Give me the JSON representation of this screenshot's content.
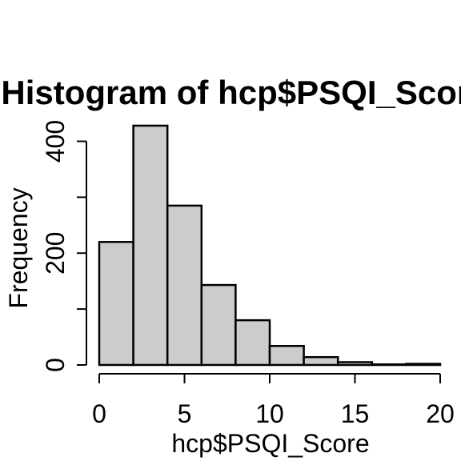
{
  "chart_data": {
    "type": "bar",
    "title": "Histogram of hcp$PSQI_Score",
    "xlabel": "hcp$PSQI_Score",
    "ylabel": "Frequency",
    "bins": [
      {
        "start": 0,
        "end": 2,
        "value": 220
      },
      {
        "start": 2,
        "end": 4,
        "value": 428
      },
      {
        "start": 4,
        "end": 6,
        "value": 285
      },
      {
        "start": 6,
        "end": 8,
        "value": 143
      },
      {
        "start": 8,
        "end": 10,
        "value": 80
      },
      {
        "start": 10,
        "end": 12,
        "value": 34
      },
      {
        "start": 12,
        "end": 14,
        "value": 14
      },
      {
        "start": 14,
        "end": 16,
        "value": 5
      },
      {
        "start": 16,
        "end": 18,
        "value": 1
      },
      {
        "start": 18,
        "end": 20,
        "value": 2
      }
    ],
    "xlim": [
      0,
      20
    ],
    "ylim": [
      0,
      428
    ],
    "x_ticks": [
      "0",
      "5",
      "10",
      "15",
      "20"
    ],
    "y_ticks": [
      "0",
      "200",
      "400"
    ],
    "y_minor_ticks": [
      100,
      300
    ],
    "grid": false,
    "bar_color": "#cccccc",
    "bar_edge_color": "#000000"
  }
}
